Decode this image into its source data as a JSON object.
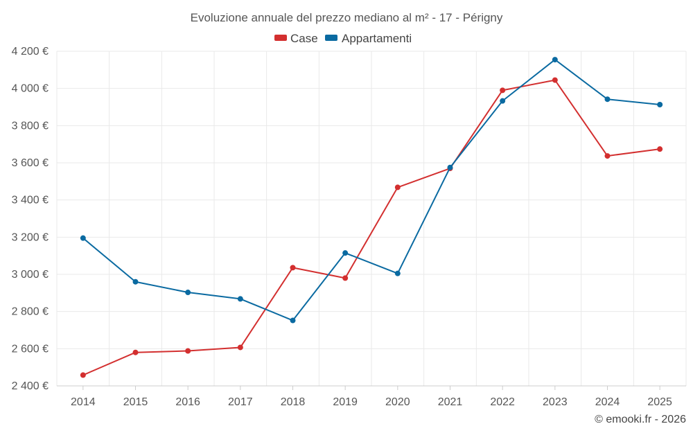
{
  "chart_data": {
    "type": "line",
    "title": "Evoluzione annuale del prezzo mediano al m² - 17 - Périgny",
    "categories": [
      "2014",
      "2015",
      "2016",
      "2017",
      "2018",
      "2019",
      "2020",
      "2021",
      "2022",
      "2023",
      "2024",
      "2025"
    ],
    "series": [
      {
        "name": "Case",
        "color": "#d32f2f",
        "values": [
          2458,
          2580,
          2588,
          2607,
          3036,
          2980,
          3468,
          3570,
          3990,
          4045,
          3637,
          3674
        ]
      },
      {
        "name": "Appartamenti",
        "color": "#0a6aa1",
        "values": [
          3195,
          2960,
          2903,
          2868,
          2752,
          3115,
          3005,
          3575,
          3933,
          4155,
          3942,
          3913
        ]
      }
    ],
    "ylim": [
      2400,
      4200
    ],
    "yticks": [
      2400,
      2600,
      2800,
      3000,
      3200,
      3400,
      3600,
      3800,
      4000,
      4200
    ],
    "ytick_labels": [
      "2 400 €",
      "2 600 €",
      "2 800 €",
      "3 000 €",
      "3 200 €",
      "3 400 €",
      "3 600 €",
      "3 800 €",
      "4 000 €",
      "4 200 €"
    ],
    "grid": true,
    "legend_position": "top-center",
    "xlabel": "",
    "ylabel": ""
  },
  "credit": "© emooki.fr - 2026"
}
